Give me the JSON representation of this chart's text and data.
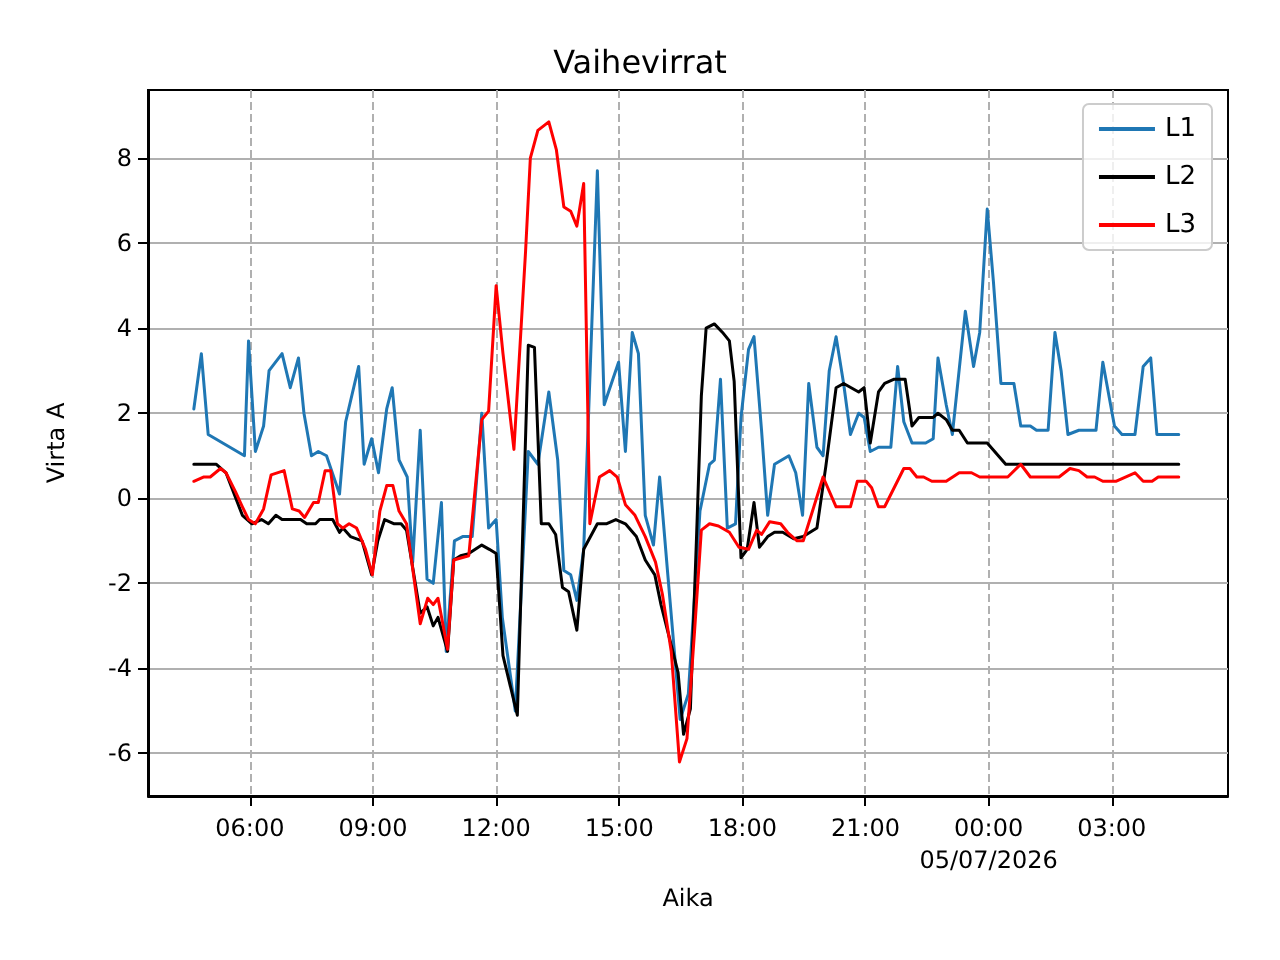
{
  "chart_data": {
    "type": "line",
    "title": "Vaihevirrat",
    "xlabel": "Aika",
    "ylabel": "Virta A",
    "xlim": [
      "2026-07-04T03:31",
      "2026-07-05T05:50"
    ],
    "xticks": [
      {
        "value": "2026-07-04T06:00",
        "label": "06:00"
      },
      {
        "value": "2026-07-04T09:00",
        "label": "09:00"
      },
      {
        "value": "2026-07-04T12:00",
        "label": "12:00"
      },
      {
        "value": "2026-07-04T15:00",
        "label": "15:00"
      },
      {
        "value": "2026-07-04T18:00",
        "label": "18:00"
      },
      {
        "value": "2026-07-04T21:00",
        "label": "21:00"
      },
      {
        "value": "2026-07-05T00:00",
        "label": "00:00\n05/07/2026"
      },
      {
        "value": "2026-07-05T03:00",
        "label": "03:00"
      }
    ],
    "ylim": [
      -7,
      9.6
    ],
    "yticks": [
      -6,
      -4,
      -2,
      0,
      2,
      4,
      6,
      8
    ],
    "grid": true,
    "legend": "top right",
    "series": [
      {
        "name": "L1",
        "color": "#1f77b4",
        "x": [
          "2026-07-04T04:38",
          "2026-07-04T04:49",
          "2026-07-04T04:59",
          "2026-07-04T05:52",
          "2026-07-04T05:58",
          "2026-07-04T06:08",
          "2026-07-04T06:20",
          "2026-07-04T06:28",
          "2026-07-04T06:47",
          "2026-07-04T06:59",
          "2026-07-04T07:11",
          "2026-07-04T07:19",
          "2026-07-04T07:30",
          "2026-07-04T07:40",
          "2026-07-04T07:52",
          "2026-07-04T08:11",
          "2026-07-04T08:20",
          "2026-07-04T08:39",
          "2026-07-04T08:47",
          "2026-07-04T08:58",
          "2026-07-04T09:08",
          "2026-07-04T09:20",
          "2026-07-04T09:28",
          "2026-07-04T09:38",
          "2026-07-04T09:50",
          "2026-07-04T09:58",
          "2026-07-04T10:09",
          "2026-07-04T10:19",
          "2026-07-04T10:28",
          "2026-07-04T10:40",
          "2026-07-04T10:47",
          "2026-07-04T10:59",
          "2026-07-04T11:11",
          "2026-07-04T11:25",
          "2026-07-04T11:39",
          "2026-07-04T11:49",
          "2026-07-04T12:00",
          "2026-07-04T12:09",
          "2026-07-04T12:28",
          "2026-07-04T12:47",
          "2026-07-04T13:01",
          "2026-07-04T13:17",
          "2026-07-04T13:30",
          "2026-07-04T13:39",
          "2026-07-04T13:49",
          "2026-07-04T13:58",
          "2026-07-04T14:08",
          "2026-07-04T14:28",
          "2026-07-04T14:38",
          "2026-07-04T14:59",
          "2026-07-04T15:09",
          "2026-07-04T15:19",
          "2026-07-04T15:28",
          "2026-07-04T15:38",
          "2026-07-04T15:50",
          "2026-07-04T15:59",
          "2026-07-04T16:11",
          "2026-07-04T16:29",
          "2026-07-04T16:41",
          "2026-07-04T16:58",
          "2026-07-04T17:12",
          "2026-07-04T17:19",
          "2026-07-04T17:28",
          "2026-07-04T17:38",
          "2026-07-04T17:50",
          "2026-07-04T17:58",
          "2026-07-04T18:09",
          "2026-07-04T18:17",
          "2026-07-04T18:28",
          "2026-07-04T18:37",
          "2026-07-04T18:47",
          "2026-07-04T19:08",
          "2026-07-04T19:18",
          "2026-07-04T19:28",
          "2026-07-04T19:37",
          "2026-07-04T19:49",
          "2026-07-04T19:58",
          "2026-07-04T20:07",
          "2026-07-04T20:17",
          "2026-07-04T20:28",
          "2026-07-04T20:38",
          "2026-07-04T20:50",
          "2026-07-04T20:58",
          "2026-07-04T21:07",
          "2026-07-04T21:19",
          "2026-07-04T21:37",
          "2026-07-04T21:47",
          "2026-07-04T21:56",
          "2026-07-04T22:08",
          "2026-07-04T22:28",
          "2026-07-04T22:39",
          "2026-07-04T22:46",
          "2026-07-04T22:58",
          "2026-07-04T23:07",
          "2026-07-04T23:26",
          "2026-07-04T23:38",
          "2026-07-04T23:47",
          "2026-07-04T23:58",
          "2026-07-05T00:07",
          "2026-07-05T00:18",
          "2026-07-05T00:37",
          "2026-07-05T00:47",
          "2026-07-05T01:01",
          "2026-07-05T01:10",
          "2026-07-05T01:27",
          "2026-07-05T01:37",
          "2026-07-05T01:46",
          "2026-07-05T01:56",
          "2026-07-05T02:12",
          "2026-07-05T02:26",
          "2026-07-05T02:37",
          "2026-07-05T02:47",
          "2026-07-05T03:04",
          "2026-07-05T03:15",
          "2026-07-05T03:34",
          "2026-07-05T03:46",
          "2026-07-05T03:57",
          "2026-07-05T04:06",
          "2026-07-05T04:38"
        ],
        "values": [
          2.1,
          3.4,
          1.5,
          1.0,
          3.7,
          1.1,
          1.7,
          3.0,
          3.4,
          2.6,
          3.3,
          2.0,
          1.0,
          1.1,
          1.0,
          0.1,
          1.8,
          3.1,
          0.8,
          1.4,
          0.6,
          2.1,
          2.6,
          0.9,
          0.5,
          -1.5,
          1.6,
          -1.9,
          -2.0,
          -0.1,
          -3.6,
          -1.0,
          -0.9,
          -0.9,
          2.0,
          -0.7,
          -0.5,
          -2.8,
          -5.0,
          1.1,
          0.8,
          2.5,
          0.9,
          -1.7,
          -1.8,
          -2.4,
          -1.2,
          7.7,
          2.2,
          3.2,
          1.1,
          3.9,
          3.4,
          -0.4,
          -1.1,
          0.5,
          -1.8,
          -5.2,
          -4.6,
          -0.3,
          0.8,
          0.9,
          2.8,
          -0.7,
          -0.6,
          1.9,
          3.5,
          3.8,
          1.6,
          -0.4,
          0.8,
          1.0,
          0.6,
          -0.4,
          2.7,
          1.2,
          1.0,
          3.0,
          3.8,
          2.7,
          1.5,
          2.0,
          1.9,
          1.1,
          1.2,
          1.2,
          3.1,
          1.8,
          1.3,
          1.3,
          1.4,
          3.3,
          2.2,
          1.5,
          4.4,
          3.1,
          3.9,
          6.8,
          5.1,
          2.7,
          2.7,
          1.7,
          1.7,
          1.6,
          1.6,
          3.9,
          3.0,
          1.5,
          1.6,
          1.6,
          1.6,
          3.2,
          1.7,
          1.5,
          1.5,
          3.1,
          3.3,
          1.5,
          1.5
        ]
      },
      {
        "name": "L2",
        "color": "#000000",
        "x": [
          "2026-07-04T04:38",
          "2026-07-04T05:11",
          "2026-07-04T05:25",
          "2026-07-04T05:49",
          "2026-07-04T06:03",
          "2026-07-04T06:17",
          "2026-07-04T06:27",
          "2026-07-04T06:38",
          "2026-07-04T06:47",
          "2026-07-04T07:14",
          "2026-07-04T07:23",
          "2026-07-04T07:36",
          "2026-07-04T07:42",
          "2026-07-04T08:01",
          "2026-07-04T08:11",
          "2026-07-04T08:16",
          "2026-07-04T08:27",
          "2026-07-04T08:44",
          "2026-07-04T08:58",
          "2026-07-04T09:07",
          "2026-07-04T09:17",
          "2026-07-04T09:31",
          "2026-07-04T09:41",
          "2026-07-04T09:49",
          "2026-07-04T10:09",
          "2026-07-04T10:19",
          "2026-07-04T10:28",
          "2026-07-04T10:35",
          "2026-07-04T10:49",
          "2026-07-04T10:58",
          "2026-07-04T11:08",
          "2026-07-04T11:20",
          "2026-07-04T11:39",
          "2026-07-04T11:50",
          "2026-07-04T12:00",
          "2026-07-04T12:10",
          "2026-07-04T12:31",
          "2026-07-04T12:47",
          "2026-07-04T12:56",
          "2026-07-04T13:06",
          "2026-07-04T13:17",
          "2026-07-04T13:27",
          "2026-07-04T13:37",
          "2026-07-04T13:46",
          "2026-07-04T13:58",
          "2026-07-04T14:08",
          "2026-07-04T14:28",
          "2026-07-04T14:41",
          "2026-07-04T14:55",
          "2026-07-04T15:09",
          "2026-07-04T15:25",
          "2026-07-04T15:38",
          "2026-07-04T15:52",
          "2026-07-04T16:01",
          "2026-07-04T16:16",
          "2026-07-04T16:26",
          "2026-07-04T16:34",
          "2026-07-04T16:44",
          "2026-07-04T16:53",
          "2026-07-04T17:00",
          "2026-07-04T17:07",
          "2026-07-04T17:19",
          "2026-07-04T17:31",
          "2026-07-04T17:41",
          "2026-07-04T17:48",
          "2026-07-04T17:58",
          "2026-07-04T18:07",
          "2026-07-04T18:17",
          "2026-07-04T18:25",
          "2026-07-04T18:37",
          "2026-07-04T18:47",
          "2026-07-04T18:59",
          "2026-07-04T19:15",
          "2026-07-04T19:29",
          "2026-07-04T19:49",
          "2026-07-04T20:02",
          "2026-07-04T20:17",
          "2026-07-04T20:28",
          "2026-07-04T20:50",
          "2026-07-04T20:58",
          "2026-07-04T21:07",
          "2026-07-04T21:19",
          "2026-07-04T21:28",
          "2026-07-04T21:42",
          "2026-07-04T21:58",
          "2026-07-04T22:08",
          "2026-07-04T22:18",
          "2026-07-04T22:39",
          "2026-07-04T22:46",
          "2026-07-04T22:58",
          "2026-07-04T23:07",
          "2026-07-04T23:17",
          "2026-07-04T23:29",
          "2026-07-04T23:58",
          "2026-07-05T00:25",
          "2026-07-05T04:38"
        ],
        "values": [
          0.8,
          0.8,
          0.6,
          -0.4,
          -0.6,
          -0.5,
          -0.6,
          -0.4,
          -0.5,
          -0.5,
          -0.6,
          -0.6,
          -0.5,
          -0.5,
          -0.8,
          -0.7,
          -0.9,
          -1.0,
          -1.8,
          -1.0,
          -0.5,
          -0.6,
          -0.6,
          -0.75,
          -2.7,
          -2.55,
          -3.0,
          -2.8,
          -3.6,
          -1.45,
          -1.35,
          -1.3,
          -1.1,
          -1.2,
          -1.3,
          -3.7,
          -5.1,
          3.6,
          3.55,
          -0.6,
          -0.6,
          -0.85,
          -2.1,
          -2.2,
          -3.1,
          -1.2,
          -0.6,
          -0.6,
          -0.5,
          -0.6,
          -0.9,
          -1.45,
          -1.8,
          -2.5,
          -3.45,
          -4.1,
          -5.55,
          -4.95,
          -0.9,
          2.4,
          4.0,
          4.1,
          3.9,
          3.7,
          2.75,
          -1.4,
          -1.2,
          -0.1,
          -1.15,
          -0.9,
          -0.8,
          -0.8,
          -0.95,
          -0.9,
          -0.7,
          0.75,
          2.6,
          2.7,
          2.5,
          2.6,
          1.3,
          2.5,
          2.7,
          2.8,
          2.8,
          1.7,
          1.9,
          1.9,
          2.0,
          1.85,
          1.6,
          1.6,
          1.3,
          1.3,
          0.8,
          0.8
        ]
      },
      {
        "name": "L3",
        "color": "#ff0000",
        "x": [
          "2026-07-04T04:38",
          "2026-07-04T04:52",
          "2026-07-04T05:02",
          "2026-07-04T05:17",
          "2026-07-04T05:25",
          "2026-07-04T05:39",
          "2026-07-04T05:49",
          "2026-07-04T05:58",
          "2026-07-04T06:08",
          "2026-07-04T06:20",
          "2026-07-04T06:31",
          "2026-07-04T06:50",
          "2026-07-04T07:02",
          "2026-07-04T07:12",
          "2026-07-04T07:20",
          "2026-07-04T07:33",
          "2026-07-04T07:40",
          "2026-07-04T07:50",
          "2026-07-04T07:58",
          "2026-07-04T08:08",
          "2026-07-04T08:16",
          "2026-07-04T08:25",
          "2026-07-04T08:36",
          "2026-07-04T08:49",
          "2026-07-04T08:59",
          "2026-07-04T09:10",
          "2026-07-04T09:20",
          "2026-07-04T09:29",
          "2026-07-04T09:38",
          "2026-07-04T09:49",
          "2026-07-04T10:09",
          "2026-07-04T10:20",
          "2026-07-04T10:28",
          "2026-07-04T10:35",
          "2026-07-04T10:49",
          "2026-07-04T10:58",
          "2026-07-04T11:20",
          "2026-07-04T11:39",
          "2026-07-04T11:49",
          "2026-07-04T12:00",
          "2026-07-04T12:10",
          "2026-07-04T12:26",
          "2026-07-04T12:43",
          "2026-07-04T12:50",
          "2026-07-04T13:01",
          "2026-07-04T13:17",
          "2026-07-04T13:28",
          "2026-07-04T13:39",
          "2026-07-04T13:49",
          "2026-07-04T13:58",
          "2026-07-04T14:08",
          "2026-07-04T14:17",
          "2026-07-04T14:31",
          "2026-07-04T14:46",
          "2026-07-04T14:57",
          "2026-07-04T15:09",
          "2026-07-04T15:23",
          "2026-07-04T15:38",
          "2026-07-04T15:53",
          "2026-07-04T16:03",
          "2026-07-04T16:16",
          "2026-07-04T16:28",
          "2026-07-04T16:39",
          "2026-07-04T16:50",
          "2026-07-04T17:00",
          "2026-07-04T17:12",
          "2026-07-04T17:25",
          "2026-07-04T17:41",
          "2026-07-04T17:55",
          "2026-07-04T18:09",
          "2026-07-04T18:21",
          "2026-07-04T18:28",
          "2026-07-04T18:40",
          "2026-07-04T18:56",
          "2026-07-04T19:06",
          "2026-07-04T19:20",
          "2026-07-04T19:29",
          "2026-07-04T19:58",
          "2026-07-04T20:17",
          "2026-07-04T20:38",
          "2026-07-04T20:48",
          "2026-07-04T21:01",
          "2026-07-04T21:09",
          "2026-07-04T21:19",
          "2026-07-04T21:28",
          "2026-07-04T21:56",
          "2026-07-04T22:05",
          "2026-07-04T22:15",
          "2026-07-04T22:25",
          "2026-07-04T22:37",
          "2026-07-04T22:58",
          "2026-07-04T23:17",
          "2026-07-04T23:35",
          "2026-07-04T23:47",
          "2026-07-05T00:28",
          "2026-07-05T00:47",
          "2026-07-05T01:01",
          "2026-07-05T01:43",
          "2026-07-05T01:59",
          "2026-07-05T02:12",
          "2026-07-05T02:24",
          "2026-07-05T02:35",
          "2026-07-05T02:47",
          "2026-07-05T03:06",
          "2026-07-05T03:34",
          "2026-07-05T03:46",
          "2026-07-05T03:59",
          "2026-07-05T04:08",
          "2026-07-05T04:38"
        ],
        "values": [
          0.4,
          0.5,
          0.5,
          0.7,
          0.6,
          0.15,
          -0.2,
          -0.5,
          -0.6,
          -0.25,
          0.55,
          0.65,
          -0.25,
          -0.3,
          -0.45,
          -0.1,
          -0.1,
          0.65,
          0.65,
          -0.6,
          -0.7,
          -0.6,
          -0.7,
          -1.2,
          -1.8,
          -0.3,
          0.3,
          0.3,
          -0.3,
          -0.6,
          -2.95,
          -2.35,
          -2.5,
          -2.35,
          -3.55,
          -1.45,
          -1.35,
          1.85,
          2.05,
          5.0,
          3.4,
          1.15,
          5.8,
          8.0,
          8.65,
          8.85,
          8.2,
          6.85,
          6.75,
          6.4,
          7.4,
          -0.6,
          0.5,
          0.65,
          0.5,
          -0.15,
          -0.4,
          -0.9,
          -1.5,
          -2.25,
          -3.6,
          -6.2,
          -5.65,
          -3.15,
          -0.75,
          -0.6,
          -0.65,
          -0.8,
          -1.15,
          -1.2,
          -0.75,
          -0.85,
          -0.55,
          -0.6,
          -0.8,
          -1.0,
          -1.0,
          0.5,
          -0.2,
          -0.2,
          0.4,
          0.4,
          0.25,
          -0.2,
          -0.2,
          0.7,
          0.7,
          0.5,
          0.5,
          0.4,
          0.4,
          0.6,
          0.6,
          0.5,
          0.5,
          0.8,
          0.5,
          0.5,
          0.7,
          0.65,
          0.5,
          0.5,
          0.4,
          0.4,
          0.6,
          0.4,
          0.4,
          0.5,
          0.5
        ]
      }
    ]
  }
}
